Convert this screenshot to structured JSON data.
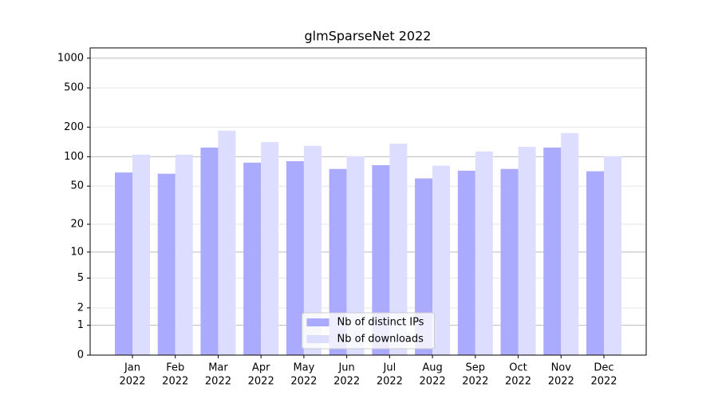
{
  "chart_data": {
    "type": "bar",
    "title": "glmSparseNet 2022",
    "categories": [
      [
        "Jan",
        "2022"
      ],
      [
        "Feb",
        "2022"
      ],
      [
        "Mar",
        "2022"
      ],
      [
        "Apr",
        "2022"
      ],
      [
        "May",
        "2022"
      ],
      [
        "Jun",
        "2022"
      ],
      [
        "Jul",
        "2022"
      ],
      [
        "Aug",
        "2022"
      ],
      [
        "Sep",
        "2022"
      ],
      [
        "Oct",
        "2022"
      ],
      [
        "Nov",
        "2022"
      ],
      [
        "Dec",
        "2022"
      ]
    ],
    "series": [
      {
        "name": "Nb of distinct IPs",
        "color": "#aaaaff",
        "values": [
          69,
          67,
          124,
          87,
          90,
          75,
          82,
          60,
          72,
          75,
          124,
          71
        ]
      },
      {
        "name": "Nb of downloads",
        "color": "#ddddff",
        "values": [
          105,
          105,
          184,
          141,
          129,
          101,
          136,
          81,
          113,
          126,
          174,
          101
        ]
      }
    ],
    "yscale": "log1p",
    "ylim": [
      0,
      1270
    ],
    "yticks": [
      0,
      1,
      2,
      5,
      10,
      20,
      50,
      100,
      200,
      500,
      1000
    ],
    "grid": true,
    "legend": "lower center"
  }
}
